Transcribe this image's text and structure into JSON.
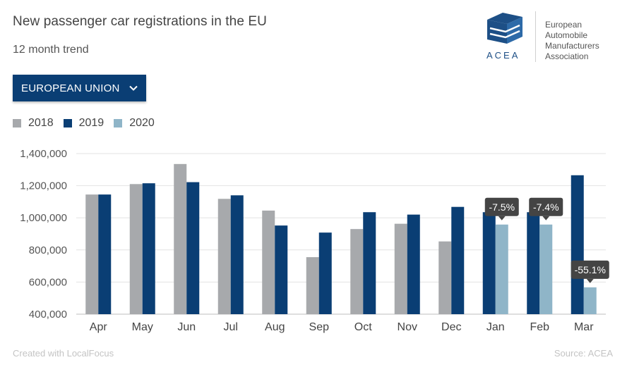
{
  "header": {
    "title": "New passenger car registrations in the EU",
    "subtitle": "12 month trend"
  },
  "dropdown": {
    "label": "EUROPEAN UNION"
  },
  "logo": {
    "name_lines": [
      "European",
      "Automobile",
      "Manufacturers",
      "Association"
    ],
    "acronym": "ACEA"
  },
  "footer": {
    "left": "Created with LocalFocus",
    "right": "Source: ACEA"
  },
  "colors": {
    "s2018": "#a7a9ac",
    "s2019": "#0a3e74",
    "s2020": "#8fb5c8",
    "callout": "#444444",
    "grid": "#e3e3e3"
  },
  "chart_data": {
    "type": "bar",
    "categories": [
      "Apr",
      "May",
      "Jun",
      "Jul",
      "Aug",
      "Sep",
      "Oct",
      "Nov",
      "Dec",
      "Jan",
      "Feb",
      "Mar"
    ],
    "series": [
      {
        "name": "2018",
        "values": [
          1145000,
          1210000,
          1335000,
          1118000,
          1045000,
          755000,
          930000,
          963000,
          853000,
          null,
          null,
          null
        ]
      },
      {
        "name": "2019",
        "values": [
          1145000,
          1215000,
          1222000,
          1140000,
          952000,
          908000,
          1035000,
          1020000,
          1068000,
          1035000,
          1035000,
          1265000
        ]
      },
      {
        "name": "2020",
        "values": [
          null,
          null,
          null,
          null,
          null,
          null,
          null,
          null,
          null,
          958000,
          958000,
          567000
        ]
      }
    ],
    "annotations": [
      {
        "category": "Jan",
        "text": "-7.5%"
      },
      {
        "category": "Feb",
        "text": "-7.4%"
      },
      {
        "category": "Mar",
        "text": "-55.1%"
      }
    ],
    "yticks": [
      "400,000",
      "600,000",
      "800,000",
      "1,000,000",
      "1,200,000",
      "1,400,000"
    ],
    "ylim": [
      400000,
      1400000
    ],
    "grid": true,
    "legend_position": "top-left"
  }
}
